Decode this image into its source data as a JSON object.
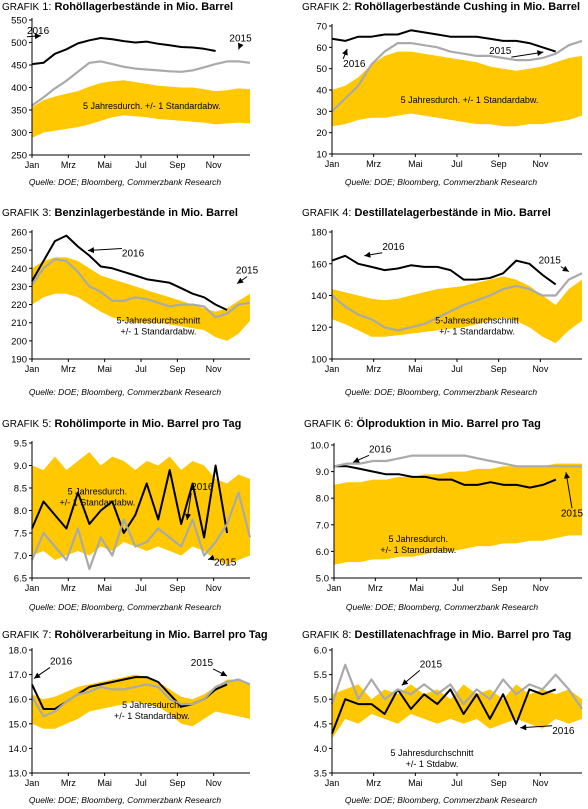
{
  "colors": {
    "band": "#FFC800",
    "line2016": "#000000",
    "line2015": "#AAAAAA",
    "axis": "#000000"
  },
  "months": [
    "Jan",
    "Mrz",
    "Mai",
    "Jul",
    "Sep",
    "Nov"
  ],
  "source": "Quelle: DOE; Bloomberg, Commerzbank Research",
  "chart_data": [
    {
      "type": "area",
      "prefix": "Grafik",
      "num": "1:",
      "title": "Rohöllagerbestände in Mio. Barrel",
      "ylim": [
        250,
        550
      ],
      "yticks": [
        250,
        300,
        350,
        400,
        450,
        500,
        550
      ],
      "xlabel": "",
      "ylabel": "",
      "band": {
        "low": [
          288,
          300,
          304,
          308,
          312,
          318,
          326,
          334,
          338,
          336,
          334,
          330,
          328,
          326,
          324,
          322,
          318,
          320,
          322,
          320
        ],
        "high": [
          356,
          372,
          380,
          386,
          392,
          402,
          410,
          414,
          416,
          412,
          408,
          404,
          402,
          400,
          400,
          396,
          392,
          394,
          398,
          396
        ],
        "label_lines": [
          "5 Jahresdurch. +/- 1 Standardabw."
        ]
      },
      "series": [
        {
          "name": "2016",
          "color": "#000000",
          "values": [
            452,
            455,
            475,
            485,
            498,
            505,
            510,
            507,
            503,
            500,
            502,
            497,
            494,
            490,
            489,
            486,
            481
          ]
        },
        {
          "name": "2015",
          "color": "#AAAAAA",
          "values": [
            360,
            378,
            398,
            415,
            435,
            455,
            458,
            452,
            446,
            442,
            440,
            438,
            436,
            435,
            438,
            445,
            452,
            458,
            458,
            455
          ]
        }
      ]
    },
    {
      "type": "area",
      "prefix": "Grafik",
      "num": "2:",
      "title": "Rohöllagerbestände Cushing in Mio. Barrel",
      "ylim": [
        10,
        70
      ],
      "yticks": [
        10,
        20,
        30,
        40,
        50,
        60,
        70
      ],
      "xlabel": "",
      "ylabel": "",
      "band": {
        "low": [
          23,
          24,
          26,
          27,
          27,
          28,
          29,
          28,
          27,
          26,
          25,
          24,
          24,
          23,
          23,
          24,
          24,
          25,
          26,
          28
        ],
        "high": [
          40,
          42,
          46,
          52,
          56,
          58,
          58,
          57,
          56,
          55,
          54,
          53,
          51,
          50,
          49,
          50,
          51,
          53,
          55,
          56
        ],
        "label_lines": [
          "5 Jahresdurch. +/- 1 Standardabw."
        ]
      },
      "series": [
        {
          "name": "2016",
          "color": "#000000",
          "values": [
            64,
            63,
            65,
            65,
            66,
            66,
            68,
            67,
            66,
            65,
            65,
            65,
            64,
            63,
            63,
            62,
            60,
            58
          ]
        },
        {
          "name": "2015",
          "color": "#AAAAAA",
          "values": [
            30,
            36,
            42,
            52,
            58,
            62,
            62,
            61,
            60,
            58,
            57,
            56,
            56,
            55,
            54,
            54,
            55,
            57,
            61,
            63
          ]
        }
      ]
    },
    {
      "type": "area",
      "prefix": "Grafik",
      "num": "3:",
      "title": "Benzinlagerbestände in Mio. Barrel",
      "ylim": [
        190,
        260
      ],
      "yticks": [
        190,
        200,
        210,
        220,
        230,
        240,
        250,
        260
      ],
      "xlabel": "",
      "ylabel": "",
      "band": {
        "low": [
          220,
          224,
          226,
          226,
          224,
          220,
          216,
          213,
          211,
          210,
          210,
          210,
          209,
          208,
          207,
          206,
          202,
          200,
          204,
          211
        ],
        "high": [
          240,
          244,
          246,
          246,
          244,
          240,
          236,
          234,
          232,
          230,
          228,
          226,
          224,
          222,
          220,
          218,
          216,
          218,
          222,
          226
        ],
        "label_lines": [
          "5-Jahresdurchschnitt",
          "+/- 1 Standardabw."
        ]
      },
      "series": [
        {
          "name": "2016",
          "color": "#000000",
          "values": [
            233,
            244,
            255,
            258,
            252,
            247,
            241,
            240,
            238,
            236,
            234,
            233,
            232,
            229,
            226,
            224,
            220,
            217
          ]
        },
        {
          "name": "2015",
          "color": "#AAAAAA",
          "values": [
            231,
            240,
            245,
            244,
            238,
            230,
            227,
            222,
            222,
            224,
            223,
            221,
            219,
            220,
            220,
            219,
            213,
            215,
            220,
            221
          ]
        }
      ]
    },
    {
      "type": "area",
      "prefix": "Grafik",
      "num": "4:",
      "title": "Destillatelagerbestände in Mio. Barrel",
      "ylim": [
        100,
        180
      ],
      "yticks": [
        100,
        120,
        140,
        160,
        180
      ],
      "xlabel": "",
      "ylabel": "",
      "band": {
        "low": [
          125,
          122,
          118,
          114,
          114,
          115,
          116,
          117,
          118,
          119,
          120,
          122,
          124,
          126,
          124,
          120,
          114,
          110,
          118,
          124
        ],
        "high": [
          144,
          142,
          140,
          138,
          137,
          138,
          140,
          142,
          144,
          145,
          146,
          148,
          150,
          152,
          150,
          146,
          140,
          134,
          144,
          150
        ],
        "label_lines": [
          "5-Jahresdurchschnitt",
          "+/- 1 Standardabw."
        ]
      },
      "series": [
        {
          "name": "2016",
          "color": "#000000",
          "values": [
            162,
            165,
            160,
            158,
            156,
            157,
            159,
            158,
            158,
            156,
            150,
            150,
            151,
            154,
            162,
            160,
            153,
            147
          ]
        },
        {
          "name": "2015",
          "color": "#AAAAAA",
          "values": [
            140,
            133,
            128,
            125,
            120,
            118,
            120,
            122,
            126,
            130,
            134,
            137,
            140,
            144,
            146,
            144,
            140,
            140,
            150,
            154
          ]
        }
      ]
    },
    {
      "type": "line",
      "prefix": "Grafik",
      "num": "5:",
      "title": "Rohölimporte in Mio. Barrel pro Tag",
      "ylim": [
        6.5,
        9.5
      ],
      "yticks": [
        6.5,
        7.0,
        7.5,
        8.0,
        8.5,
        9.0,
        9.5
      ],
      "xlabel": "",
      "ylabel": "",
      "band": {
        "low": [
          7.0,
          7.1,
          6.9,
          7.0,
          7.1,
          7.0,
          7.2,
          7.1,
          7.3,
          7.2,
          7.1,
          7.2,
          7.1,
          7.0,
          7.2,
          7.1,
          6.9,
          6.8,
          6.9,
          7.0
        ],
        "high": [
          9.0,
          8.9,
          9.2,
          8.9,
          9.1,
          9.3,
          9.0,
          9.2,
          9.1,
          8.9,
          9.1,
          9.0,
          9.2,
          8.9,
          9.1,
          9.0,
          8.7,
          8.6,
          8.8,
          8.7
        ],
        "label_lines": [
          "5 Jahresdurch.",
          "+/- 1 Standardabw."
        ]
      },
      "series": [
        {
          "name": "2016",
          "color": "#000000",
          "values": [
            7.6,
            8.2,
            7.9,
            7.6,
            8.4,
            7.7,
            8.0,
            8.2,
            7.5,
            7.9,
            8.6,
            7.8,
            8.9,
            7.7,
            8.6,
            7.4,
            9.0,
            7.5
          ]
        },
        {
          "name": "2015",
          "color": "#AAAAAA",
          "values": [
            6.9,
            7.5,
            7.2,
            6.9,
            7.6,
            6.7,
            7.4,
            7.0,
            7.8,
            7.2,
            7.3,
            7.6,
            7.4,
            7.2,
            7.8,
            7.0,
            7.3,
            7.7,
            8.4,
            7.4
          ]
        }
      ]
    },
    {
      "type": "area",
      "prefix": "Grafik",
      "num": "6:",
      "title": "Ölproduktion in Mio. Barrel pro Tag",
      "ylim": [
        5.0,
        10.0
      ],
      "yticks": [
        5.0,
        6.0,
        7.0,
        8.0,
        9.0,
        10.0
      ],
      "xlabel": "",
      "ylabel": "",
      "band": {
        "low": [
          5.5,
          5.6,
          5.6,
          5.7,
          5.7,
          5.8,
          5.8,
          5.9,
          6.0,
          6.0,
          6.1,
          6.2,
          6.2,
          6.3,
          6.3,
          6.4,
          6.4,
          6.5,
          6.6,
          6.6
        ],
        "high": [
          8.5,
          8.6,
          8.6,
          8.7,
          8.7,
          8.8,
          8.8,
          8.9,
          8.9,
          9.0,
          9.0,
          9.1,
          9.1,
          9.2,
          9.2,
          9.2,
          9.2,
          9.3,
          9.3,
          9.3
        ],
        "label_lines": [
          "5 Jahresdurch.",
          "+/-  1 Standardabw."
        ]
      },
      "series": [
        {
          "name": "2016",
          "color": "#000000",
          "values": [
            9.2,
            9.2,
            9.1,
            9.0,
            8.9,
            8.9,
            8.8,
            8.8,
            8.7,
            8.7,
            8.5,
            8.5,
            8.6,
            8.5,
            8.5,
            8.4,
            8.5,
            8.7
          ]
        },
        {
          "name": "2015",
          "color": "#AAAAAA",
          "values": [
            9.2,
            9.3,
            9.3,
            9.4,
            9.4,
            9.5,
            9.6,
            9.6,
            9.6,
            9.6,
            9.6,
            9.5,
            9.4,
            9.3,
            9.2,
            9.2,
            9.2,
            9.2,
            9.2,
            9.2
          ]
        }
      ]
    },
    {
      "type": "area",
      "prefix": "Grafik",
      "num": "7:",
      "title": "Rohölverarbeitung in Mio. Barrel pro Tag",
      "ylim": [
        13.0,
        18.0
      ],
      "yticks": [
        13.0,
        14.0,
        15.0,
        16.0,
        17.0,
        18.0
      ],
      "xlabel": "",
      "ylabel": "",
      "band": {
        "low": [
          15.0,
          14.8,
          14.8,
          15.0,
          15.2,
          15.5,
          15.6,
          15.7,
          15.8,
          15.9,
          15.8,
          15.7,
          15.4,
          15.0,
          14.9,
          15.2,
          15.5,
          15.4,
          15.3,
          15.2
        ],
        "high": [
          16.2,
          16.0,
          16.1,
          16.3,
          16.5,
          16.6,
          16.7,
          16.8,
          16.9,
          17.0,
          16.9,
          16.7,
          16.4,
          16.1,
          16.0,
          16.2,
          16.5,
          16.8,
          16.8,
          16.6
        ],
        "label_lines": [
          "5 Jahresdurch.",
          "+/-  1 Standardabw."
        ]
      },
      "series": [
        {
          "name": "2016",
          "color": "#000000",
          "values": [
            16.6,
            15.6,
            15.6,
            15.9,
            16.2,
            16.5,
            16.6,
            16.7,
            16.8,
            16.9,
            16.9,
            16.7,
            16.2,
            15.7,
            15.8,
            16.0,
            16.4,
            16.6
          ]
        },
        {
          "name": "2015",
          "color": "#AAAAAA",
          "values": [
            16.1,
            15.3,
            15.5,
            15.9,
            16.2,
            16.3,
            16.5,
            16.4,
            16.4,
            16.5,
            16.6,
            16.5,
            16.0,
            15.8,
            15.8,
            16.0,
            16.5,
            16.7,
            16.8,
            16.6
          ]
        }
      ]
    },
    {
      "type": "line",
      "prefix": "Grafik",
      "num": "8:",
      "title": "Destillatenachfrage in Mio. Barrel pro Tag",
      "ylim": [
        3.5,
        6.0
      ],
      "yticks": [
        3.5,
        4.0,
        4.5,
        5.0,
        5.5,
        6.0
      ],
      "xlabel": "",
      "ylabel": "",
      "band": {
        "low": [
          4.2,
          4.6,
          4.5,
          4.7,
          4.6,
          4.5,
          4.7,
          4.6,
          4.5,
          4.6,
          4.5,
          4.6,
          4.4,
          4.5,
          4.6,
          4.5,
          4.4,
          4.6,
          4.5,
          4.6
        ],
        "high": [
          5.1,
          5.2,
          5.3,
          5.0,
          5.2,
          5.1,
          5.3,
          5.1,
          5.2,
          5.0,
          5.3,
          5.1,
          5.2,
          5.0,
          5.3,
          5.1,
          5.2,
          5.1,
          5.2,
          5.0
        ],
        "label_lines": [
          "5 Jahresdurchschnitt",
          "+/- 1 Stdabw."
        ]
      },
      "series": [
        {
          "name": "2016",
          "color": "#000000",
          "values": [
            4.3,
            5.0,
            4.9,
            4.9,
            4.7,
            5.2,
            4.8,
            5.1,
            4.9,
            5.2,
            4.7,
            5.1,
            4.6,
            5.1,
            4.5,
            5.2,
            5.1,
            5.2
          ]
        },
        {
          "name": "2015",
          "color": "#AAAAAA",
          "values": [
            4.9,
            5.7,
            5.0,
            5.4,
            5.0,
            5.2,
            5.1,
            5.3,
            5.1,
            5.3,
            4.9,
            5.2,
            5.0,
            5.4,
            5.1,
            5.3,
            5.2,
            5.5,
            5.2,
            4.8
          ]
        }
      ]
    }
  ]
}
